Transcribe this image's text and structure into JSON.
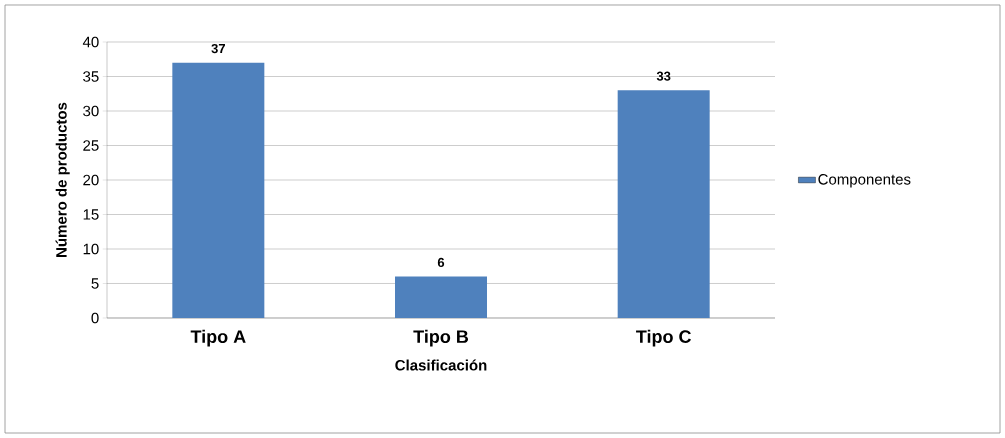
{
  "chart_data": {
    "type": "bar",
    "xlabel": "Clasificación",
    "ylabel": "Número de productos",
    "categories": [
      "Tipo A",
      "Tipo B",
      "Tipo C"
    ],
    "series": [
      {
        "name": "Componentes",
        "color": "#4f81bd",
        "values": [
          37,
          6,
          33
        ]
      }
    ],
    "ylim": [
      0,
      40
    ],
    "yticks": [
      0,
      5,
      10,
      15,
      20,
      25,
      30,
      35,
      40
    ],
    "grid": "y",
    "legend": "right",
    "data_labels": true
  }
}
